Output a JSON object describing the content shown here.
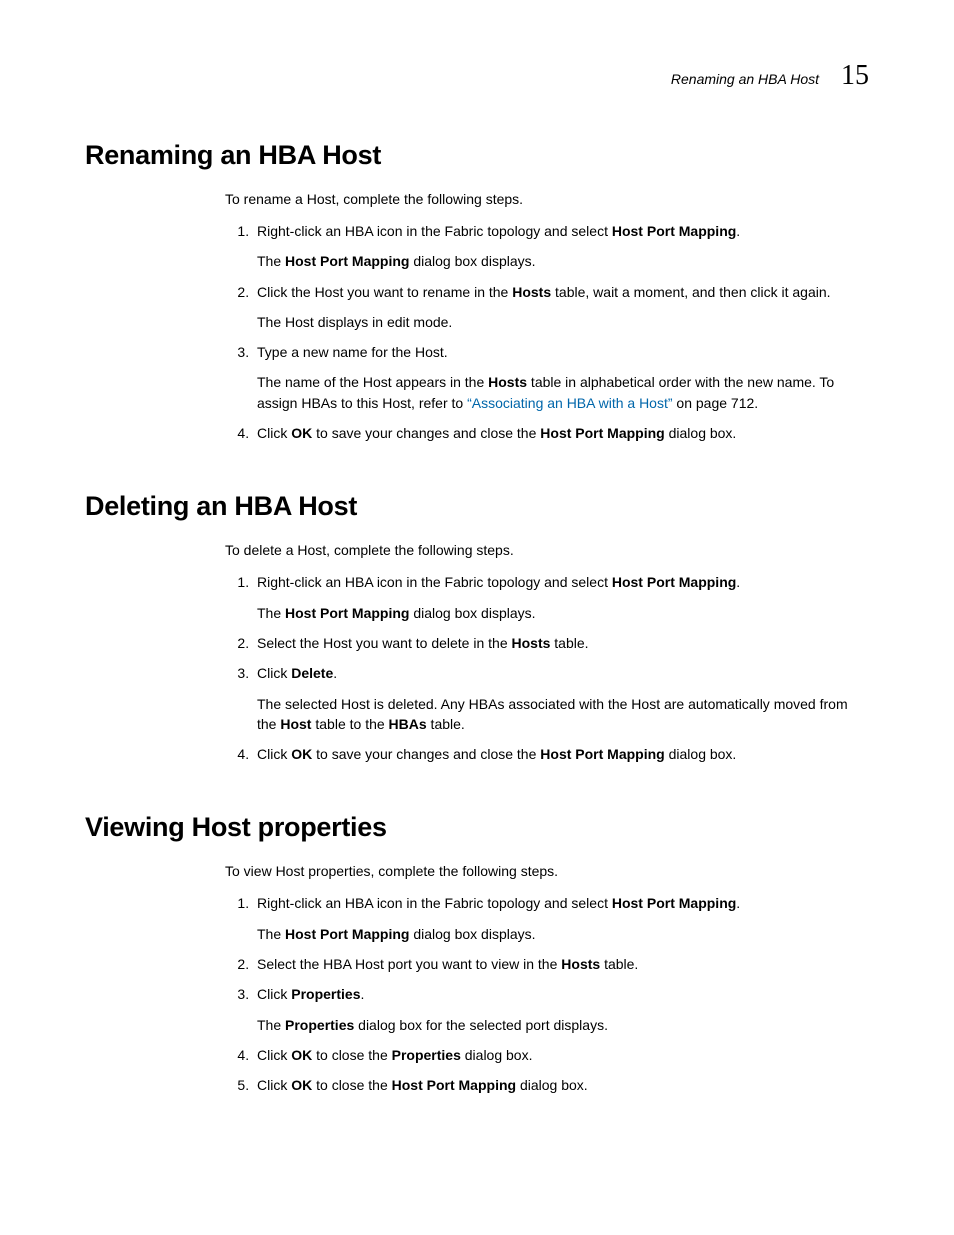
{
  "header": {
    "running_title": "Renaming an HBA Host",
    "chapter_number": "15"
  },
  "sections": {
    "renaming": {
      "heading": "Renaming an HBA Host",
      "intro": "To rename a Host, complete the following steps.",
      "step1_a": "Right-click an HBA icon in the Fabric topology and select ",
      "step1_b": "Host Port Mapping",
      "step1_c": ".",
      "step1_sub_a": "The ",
      "step1_sub_b": "Host Port Mapping",
      "step1_sub_c": " dialog box displays.",
      "step2_a": "Click the Host you want to rename in the ",
      "step2_b": "Hosts",
      "step2_c": " table, wait a moment, and then click it again.",
      "step2_sub": "The Host displays in edit mode.",
      "step3": "Type a new name for the Host.",
      "step3_sub_a": "The name of the Host appears in the ",
      "step3_sub_b": "Hosts",
      "step3_sub_c": " table in alphabetical order with the new name. To assign HBAs to this Host, refer to ",
      "step3_link": "“Associating an HBA with a Host”",
      "step3_sub_d": " on page 712.",
      "step4_a": "Click ",
      "step4_b": "OK",
      "step4_c": " to save your changes and close the ",
      "step4_d": "Host Port Mapping",
      "step4_e": " dialog box."
    },
    "deleting": {
      "heading": "Deleting an HBA Host",
      "intro": "To delete a Host, complete the following steps.",
      "step1_a": "Right-click an HBA icon in the Fabric topology and select ",
      "step1_b": "Host Port Mapping",
      "step1_c": ".",
      "step1_sub_a": "The ",
      "step1_sub_b": "Host Port Mapping",
      "step1_sub_c": " dialog box displays.",
      "step2_a": "Select the Host you want to delete in the ",
      "step2_b": "Hosts",
      "step2_c": " table.",
      "step3_a": "Click ",
      "step3_b": "Delete",
      "step3_c": ".",
      "step3_sub_a": "The selected Host is deleted. Any HBAs associated with the Host are automatically moved from the ",
      "step3_sub_b": "Host",
      "step3_sub_c": " table to the ",
      "step3_sub_d": "HBAs",
      "step3_sub_e": " table.",
      "step4_a": "Click ",
      "step4_b": "OK",
      "step4_c": " to save your changes and close the ",
      "step4_d": "Host Port Mapping",
      "step4_e": " dialog box."
    },
    "viewing": {
      "heading": "Viewing Host properties",
      "intro": "To view Host properties, complete the following steps.",
      "step1_a": "Right-click an HBA icon in the Fabric topology and select ",
      "step1_b": "Host Port Mapping",
      "step1_c": ".",
      "step1_sub_a": "The ",
      "step1_sub_b": "Host Port Mapping",
      "step1_sub_c": " dialog box displays.",
      "step2_a": "Select the HBA Host port you want to view in the ",
      "step2_b": "Hosts",
      "step2_c": " table.",
      "step3_a": "Click ",
      "step3_b": "Properties",
      "step3_c": ".",
      "step3_sub_a": "The ",
      "step3_sub_b": "Properties",
      "step3_sub_c": " dialog box for the selected port displays.",
      "step4_a": "Click ",
      "step4_b": "OK",
      "step4_c": " to close the ",
      "step4_d": "Properties",
      "step4_e": " dialog box.",
      "step5_a": "Click ",
      "step5_b": "OK",
      "step5_c": " to close the ",
      "step5_d": "Host Port Mapping",
      "step5_e": " dialog box."
    }
  }
}
